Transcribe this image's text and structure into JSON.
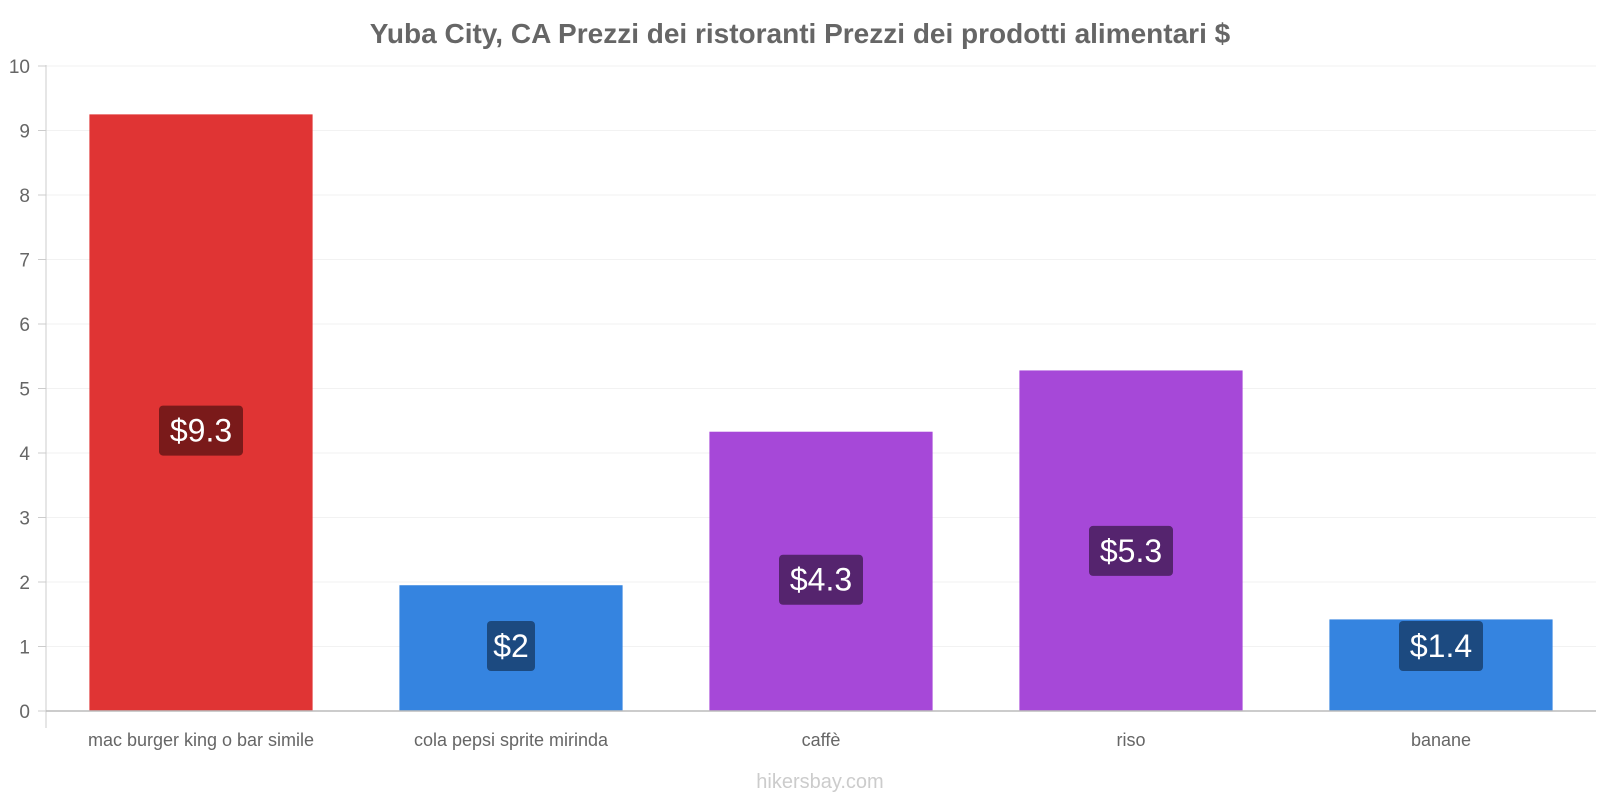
{
  "chart_data": {
    "type": "bar",
    "title": "Yuba City, CA Prezzi dei ristoranti Prezzi dei prodotti alimentari $",
    "categories": [
      "mac burger king o bar simile",
      "cola pepsi sprite mirinda",
      "caffè",
      "riso",
      "banane"
    ],
    "values": [
      9.25,
      1.95,
      4.33,
      5.28,
      1.42
    ],
    "value_labels": [
      "$9.3",
      "$2",
      "$4.3",
      "$5.3",
      "$1.4"
    ],
    "colors": [
      "#e03434",
      "#3584e0",
      "#a648d8",
      "#a648d8",
      "#3584e0"
    ],
    "label_bg_colors": [
      "#7a1a1a",
      "#1c4a80",
      "#55246e",
      "#55246e",
      "#1c4a80"
    ],
    "ylim": [
      0,
      10
    ],
    "yticks": [
      "0",
      "1",
      "2",
      "3",
      "4",
      "5",
      "6",
      "7",
      "8",
      "9",
      "10"
    ],
    "xlabel": "",
    "ylabel": "",
    "grid": true
  },
  "footer": {
    "credit": "hikersbay.com"
  }
}
